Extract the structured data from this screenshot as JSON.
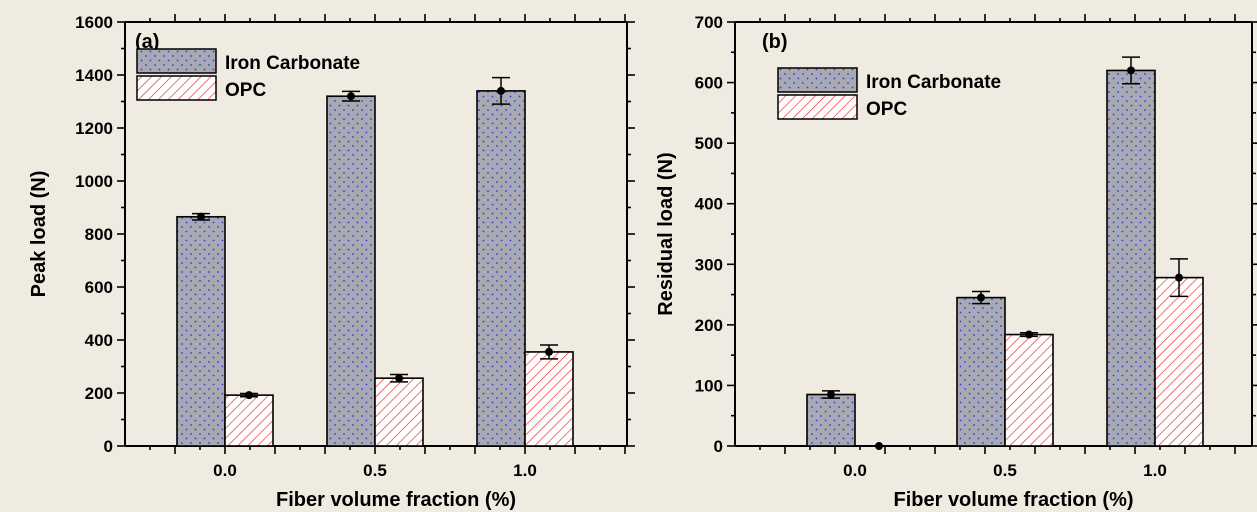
{
  "colors": {
    "background": "#efebe0",
    "iron_fill": "#a9a9b3",
    "iron_dots": "#2a3fd0",
    "opc_fill": "#ffffff",
    "opc_hatch": "#e8262a",
    "axis": "#000000"
  },
  "chart_data": [
    {
      "type": "bar",
      "panel": "(a)",
      "categories": [
        "0.0",
        "0.5",
        "1.0"
      ],
      "xlabel": "Fiber volume fraction (%)",
      "ylabel": "Peak load (N)",
      "ylim": [
        0,
        1600
      ],
      "yticks": [
        0,
        200,
        400,
        600,
        800,
        1000,
        1200,
        1400,
        1600
      ],
      "yticklabels": [
        "0",
        "200",
        "400",
        "600",
        "800",
        "1000",
        "1200",
        "1400",
        "1600"
      ],
      "legend_placement": "top-left",
      "series": [
        {
          "name": "Iron Carbonate",
          "values": [
            865,
            1320,
            1340
          ],
          "errors": [
            12,
            18,
            50
          ]
        },
        {
          "name": "OPC",
          "values": [
            192,
            256,
            355
          ],
          "errors": [
            6,
            14,
            26
          ]
        }
      ]
    },
    {
      "type": "bar",
      "panel": "(b)",
      "categories": [
        "0.0",
        "0.5",
        "1.0"
      ],
      "xlabel": "Fiber volume fraction (%)",
      "ylabel": "Residual load (N)",
      "ylim": [
        0,
        700
      ],
      "yticks": [
        0,
        100,
        200,
        300,
        400,
        500,
        600,
        700
      ],
      "yticklabels": [
        "0",
        "100",
        "200",
        "300",
        "400",
        "500",
        "600",
        "700"
      ],
      "legend_placement": "top-left",
      "series": [
        {
          "name": "Iron Carbonate",
          "values": [
            85,
            245,
            620
          ],
          "errors": [
            6,
            10,
            22
          ]
        },
        {
          "name": "OPC",
          "values": [
            0,
            184,
            278
          ],
          "errors": [
            0,
            3,
            31
          ]
        }
      ]
    }
  ]
}
